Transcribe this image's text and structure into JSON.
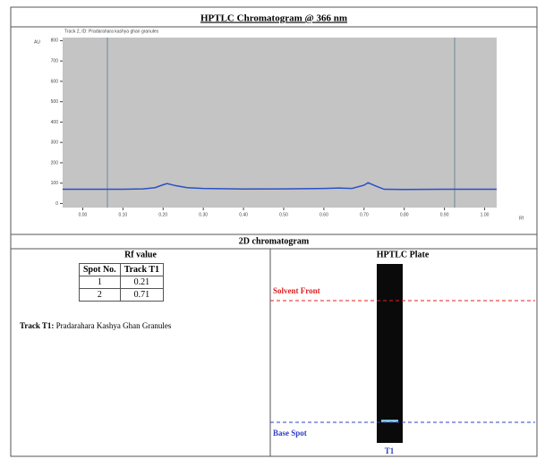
{
  "title": "HPTLC Chromatogram @ 366 nm",
  "chart_data": {
    "type": "line",
    "subtitle": "Track 2, ID: Pradarahara kashya ghan granules",
    "y_label": "AU",
    "x_label": "Rf",
    "xlim": [
      -0.05,
      1.03
    ],
    "ylim": [
      -20,
      815
    ],
    "xticks": [
      {
        "value": 0,
        "label": "0.00"
      },
      {
        "value": 0.1,
        "label": "0.10"
      },
      {
        "value": 0.2,
        "label": "0.20"
      },
      {
        "value": 0.3,
        "label": "0.30"
      },
      {
        "value": 0.4,
        "label": "0.40"
      },
      {
        "value": 0.5,
        "label": "0.50"
      },
      {
        "value": 0.6,
        "label": "0.60"
      },
      {
        "value": 0.7,
        "label": "0.70"
      },
      {
        "value": 0.8,
        "label": "0.80"
      },
      {
        "value": 0.9,
        "label": "0.90"
      },
      {
        "value": 1,
        "label": "1.00"
      }
    ],
    "yticks": [
      0,
      100,
      200,
      300,
      400,
      500,
      600,
      700,
      800
    ],
    "series": [
      {
        "color": "#2b50c8",
        "x": [
          -0.05,
          0.1,
          0.15,
          0.18,
          0.2,
          0.21,
          0.23,
          0.26,
          0.3,
          0.4,
          0.5,
          0.6,
          0.64,
          0.67,
          0.7,
          0.71,
          0.73,
          0.75,
          0.8,
          0.9,
          1.03
        ],
        "values": [
          70,
          70,
          72,
          78,
          92,
          98,
          88,
          78,
          74,
          71,
          72,
          74,
          76,
          74,
          90,
          102,
          85,
          70,
          69,
          70,
          70
        ]
      }
    ]
  },
  "section_title": "2D chromatogram",
  "rf_title": "Rf value",
  "table": {
    "header": [
      "Spot No.",
      "Track T1"
    ],
    "rows": [
      [
        "1",
        "0.21"
      ],
      [
        "2",
        "0.71"
      ]
    ]
  },
  "track_note": {
    "label": "Track T1:",
    "text": "Pradarahara Kashya Ghan Granules"
  },
  "plate": {
    "title": "HPTLC Plate",
    "solvent_front": "Solvent Front",
    "base_spot": "Base Spot",
    "track": "T1"
  }
}
